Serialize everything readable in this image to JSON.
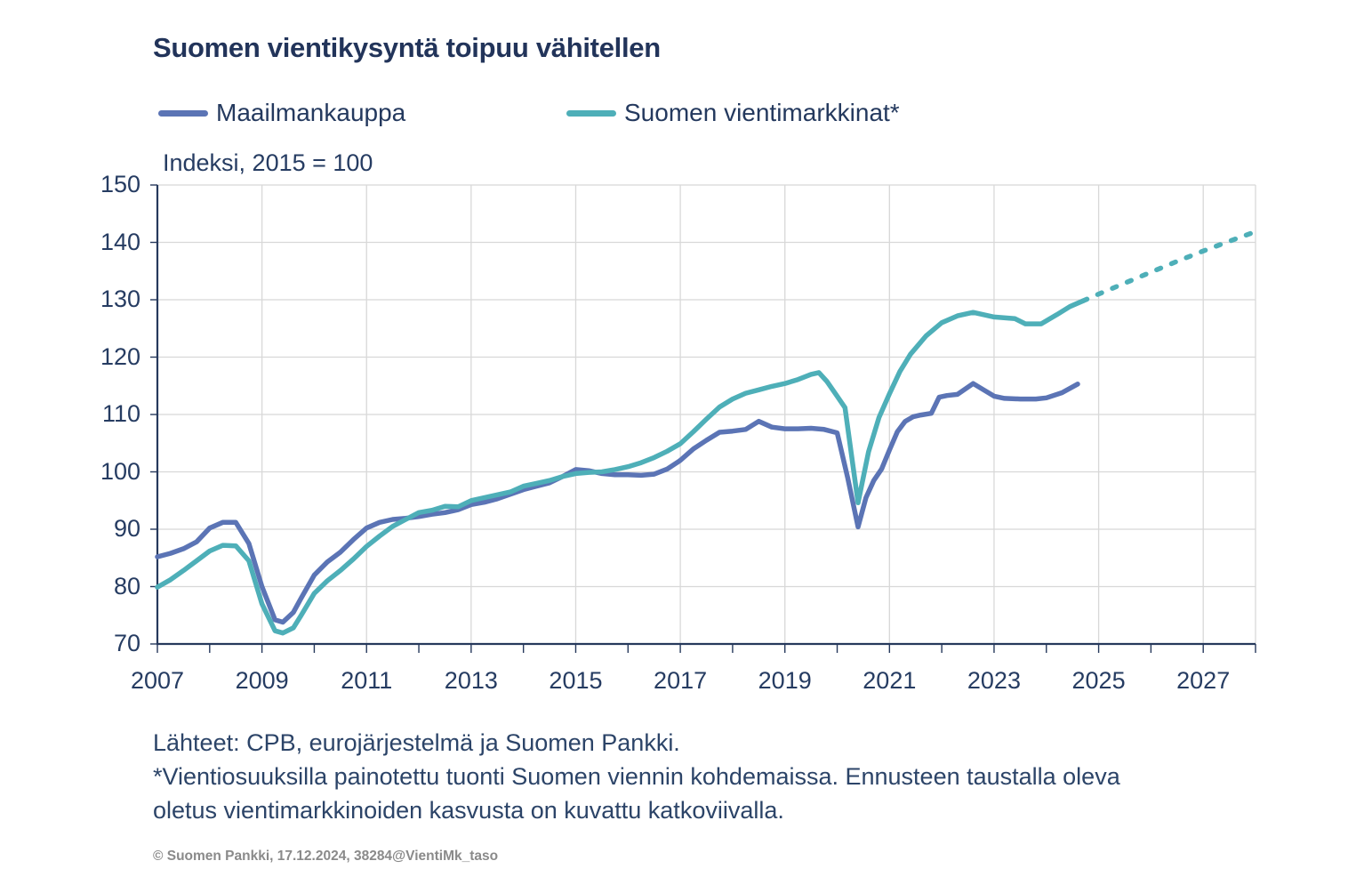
{
  "page": {
    "title": "Suomen vientikysyntä toipuu vähitellen",
    "subtitle": "Indeksi, 2015 = 100"
  },
  "legend": [
    {
      "label": "Maailmankauppa",
      "color": "#5B74B5"
    },
    {
      "label": "Suomen vientimarkkinat*",
      "color": "#4EAFB8"
    }
  ],
  "footer": {
    "sources": "Lähteet: CPB, eurojärjestelmä ja Suomen Pankki.",
    "note_lines": [
      "*Vientiosuuksilla painotettu tuonti Suomen viennin kohdemaissa. Ennusteen taustalla oleva",
      "oletus vientimarkkinoiden kasvusta on kuvattu katkoviivalla."
    ],
    "copyright": "© Suomen Pankki, 17.12.2024, 38284@VientiMk_taso"
  },
  "chart_data": {
    "type": "line",
    "title": "Suomen vientikysyntä toipuu vähitellen",
    "subtitle": "Indeksi, 2015 = 100",
    "grid": true,
    "legend_position": "top",
    "colors": {
      "grid": "#D8D8D8",
      "axis": "#26395C"
    },
    "x_axis": {
      "min": 2007,
      "max": 2028,
      "minor_tick_every": 1,
      "gridline_every": 2,
      "labels": [
        2007,
        2009,
        2011,
        2013,
        2015,
        2017,
        2019,
        2021,
        2023,
        2025,
        2027
      ]
    },
    "y_axis": {
      "min": 70,
      "max": 150,
      "tick_every": 10,
      "labels": [
        150,
        140,
        130,
        120,
        110,
        100,
        90,
        80,
        70
      ]
    },
    "series": [
      {
        "name": "Maailmankauppa",
        "color": "#5B74B5",
        "line_style": "solid",
        "points": [
          [
            2007.0,
            85.2
          ],
          [
            2007.25,
            85.8
          ],
          [
            2007.5,
            86.6
          ],
          [
            2007.75,
            87.8
          ],
          [
            2008.0,
            90.2
          ],
          [
            2008.25,
            91.2
          ],
          [
            2008.5,
            91.2
          ],
          [
            2008.75,
            87.5
          ],
          [
            2009.0,
            80.0
          ],
          [
            2009.25,
            74.2
          ],
          [
            2009.4,
            73.8
          ],
          [
            2009.6,
            75.5
          ],
          [
            2009.75,
            78.0
          ],
          [
            2010.0,
            82.0
          ],
          [
            2010.25,
            84.3
          ],
          [
            2010.5,
            86.0
          ],
          [
            2010.75,
            88.2
          ],
          [
            2011.0,
            90.2
          ],
          [
            2011.25,
            91.2
          ],
          [
            2011.5,
            91.7
          ],
          [
            2011.75,
            91.9
          ],
          [
            2012.0,
            92.2
          ],
          [
            2012.25,
            92.6
          ],
          [
            2012.5,
            92.9
          ],
          [
            2012.75,
            93.4
          ],
          [
            2013.0,
            94.3
          ],
          [
            2013.25,
            94.7
          ],
          [
            2013.5,
            95.3
          ],
          [
            2013.75,
            96.1
          ],
          [
            2014.0,
            96.9
          ],
          [
            2014.25,
            97.5
          ],
          [
            2014.5,
            98.1
          ],
          [
            2014.75,
            99.2
          ],
          [
            2015.0,
            100.4
          ],
          [
            2015.25,
            100.2
          ],
          [
            2015.5,
            99.7
          ],
          [
            2015.75,
            99.5
          ],
          [
            2016.0,
            99.5
          ],
          [
            2016.25,
            99.4
          ],
          [
            2016.5,
            99.6
          ],
          [
            2016.75,
            100.5
          ],
          [
            2017.0,
            102.0
          ],
          [
            2017.25,
            104.0
          ],
          [
            2017.5,
            105.5
          ],
          [
            2017.75,
            106.9
          ],
          [
            2018.0,
            107.1
          ],
          [
            2018.25,
            107.4
          ],
          [
            2018.5,
            108.8
          ],
          [
            2018.75,
            107.8
          ],
          [
            2019.0,
            107.5
          ],
          [
            2019.25,
            107.5
          ],
          [
            2019.5,
            107.6
          ],
          [
            2019.75,
            107.4
          ],
          [
            2020.0,
            106.8
          ],
          [
            2020.2,
            99.0
          ],
          [
            2020.4,
            90.4
          ],
          [
            2020.55,
            95.5
          ],
          [
            2020.7,
            98.5
          ],
          [
            2020.85,
            100.5
          ],
          [
            2021.0,
            103.8
          ],
          [
            2021.15,
            107.0
          ],
          [
            2021.3,
            108.8
          ],
          [
            2021.45,
            109.6
          ],
          [
            2021.6,
            109.9
          ],
          [
            2021.8,
            110.2
          ],
          [
            2021.95,
            113.0
          ],
          [
            2022.1,
            113.3
          ],
          [
            2022.3,
            113.5
          ],
          [
            2022.6,
            115.4
          ],
          [
            2022.8,
            114.3
          ],
          [
            2023.0,
            113.2
          ],
          [
            2023.2,
            112.8
          ],
          [
            2023.5,
            112.7
          ],
          [
            2023.8,
            112.7
          ],
          [
            2024.0,
            112.9
          ],
          [
            2024.3,
            113.8
          ],
          [
            2024.6,
            115.3
          ]
        ]
      },
      {
        "name": "Suomen vientimarkkinat*",
        "color": "#4EAFB8",
        "line_style": "solid",
        "points": [
          [
            2007.0,
            79.9
          ],
          [
            2007.25,
            81.2
          ],
          [
            2007.5,
            82.8
          ],
          [
            2007.75,
            84.5
          ],
          [
            2008.0,
            86.2
          ],
          [
            2008.25,
            87.2
          ],
          [
            2008.5,
            87.1
          ],
          [
            2008.75,
            84.5
          ],
          [
            2009.0,
            77.0
          ],
          [
            2009.25,
            72.3
          ],
          [
            2009.4,
            71.9
          ],
          [
            2009.6,
            72.8
          ],
          [
            2009.75,
            75.0
          ],
          [
            2010.0,
            78.8
          ],
          [
            2010.25,
            81.0
          ],
          [
            2010.5,
            82.8
          ],
          [
            2010.75,
            84.8
          ],
          [
            2011.0,
            87.0
          ],
          [
            2011.25,
            88.8
          ],
          [
            2011.5,
            90.5
          ],
          [
            2011.75,
            91.7
          ],
          [
            2012.0,
            92.9
          ],
          [
            2012.25,
            93.3
          ],
          [
            2012.5,
            94.0
          ],
          [
            2012.75,
            93.9
          ],
          [
            2013.0,
            95.0
          ],
          [
            2013.25,
            95.5
          ],
          [
            2013.5,
            96.0
          ],
          [
            2013.75,
            96.5
          ],
          [
            2014.0,
            97.5
          ],
          [
            2014.25,
            98.0
          ],
          [
            2014.5,
            98.5
          ],
          [
            2014.75,
            99.2
          ],
          [
            2015.0,
            99.7
          ],
          [
            2015.25,
            99.9
          ],
          [
            2015.5,
            100.0
          ],
          [
            2015.75,
            100.4
          ],
          [
            2016.0,
            100.9
          ],
          [
            2016.25,
            101.6
          ],
          [
            2016.5,
            102.5
          ],
          [
            2016.75,
            103.6
          ],
          [
            2017.0,
            104.9
          ],
          [
            2017.25,
            107.0
          ],
          [
            2017.5,
            109.2
          ],
          [
            2017.75,
            111.3
          ],
          [
            2018.0,
            112.7
          ],
          [
            2018.25,
            113.7
          ],
          [
            2018.5,
            114.3
          ],
          [
            2018.75,
            114.9
          ],
          [
            2019.0,
            115.4
          ],
          [
            2019.25,
            116.1
          ],
          [
            2019.5,
            117.0
          ],
          [
            2019.65,
            117.3
          ],
          [
            2019.8,
            115.8
          ],
          [
            2020.0,
            113.2
          ],
          [
            2020.15,
            111.2
          ],
          [
            2020.4,
            94.6
          ],
          [
            2020.6,
            103.5
          ],
          [
            2020.8,
            109.5
          ],
          [
            2021.0,
            113.6
          ],
          [
            2021.2,
            117.5
          ],
          [
            2021.4,
            120.5
          ],
          [
            2021.7,
            123.7
          ],
          [
            2022.0,
            126.0
          ],
          [
            2022.3,
            127.2
          ],
          [
            2022.6,
            127.8
          ],
          [
            2022.8,
            127.4
          ],
          [
            2023.0,
            127.0
          ],
          [
            2023.4,
            126.7
          ],
          [
            2023.6,
            125.8
          ],
          [
            2023.9,
            125.8
          ],
          [
            2024.2,
            127.4
          ],
          [
            2024.45,
            128.8
          ],
          [
            2024.7,
            129.8
          ]
        ]
      },
      {
        "name": "Suomen vientimarkkinat* (ennuste)",
        "color": "#4EAFB8",
        "line_style": "dashed",
        "points": [
          [
            2024.7,
            129.8
          ],
          [
            2025.0,
            131.0
          ],
          [
            2025.5,
            132.9
          ],
          [
            2026.0,
            134.8
          ],
          [
            2026.5,
            136.7
          ],
          [
            2027.0,
            138.5
          ],
          [
            2027.5,
            140.2
          ],
          [
            2027.95,
            141.7
          ]
        ]
      }
    ]
  }
}
